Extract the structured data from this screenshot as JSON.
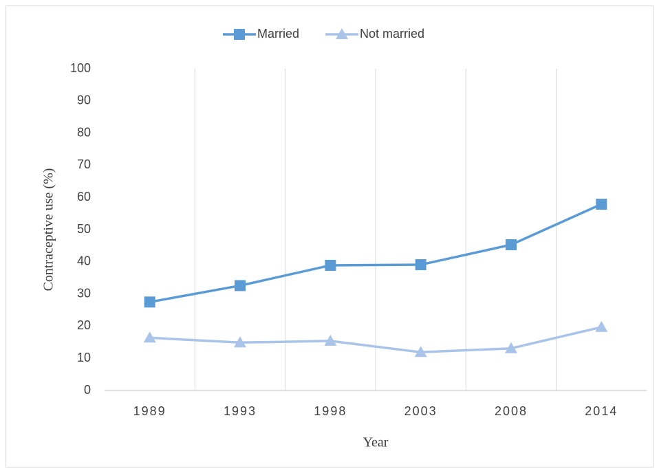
{
  "chart_data": {
    "type": "line",
    "x_label": "Year",
    "y_label": "Contraceptive use (%)",
    "categories": [
      "1989",
      "1993",
      "1998",
      "2003",
      "2008",
      "2014"
    ],
    "series": [
      {
        "name": "Married",
        "color": "#5b9bd5",
        "marker": "square",
        "values": [
          27.5,
          32.6,
          38.9,
          39.1,
          45.3,
          57.9
        ]
      },
      {
        "name": "Not married",
        "color": "#a9c4e8",
        "marker": "triangle",
        "values": [
          16.4,
          14.9,
          15.4,
          11.9,
          13.1,
          19.7
        ]
      }
    ],
    "ylim": [
      0,
      100
    ],
    "yticks": [
      0,
      10,
      20,
      30,
      40,
      50,
      60,
      70,
      80,
      90,
      100
    ],
    "legend": "top"
  }
}
